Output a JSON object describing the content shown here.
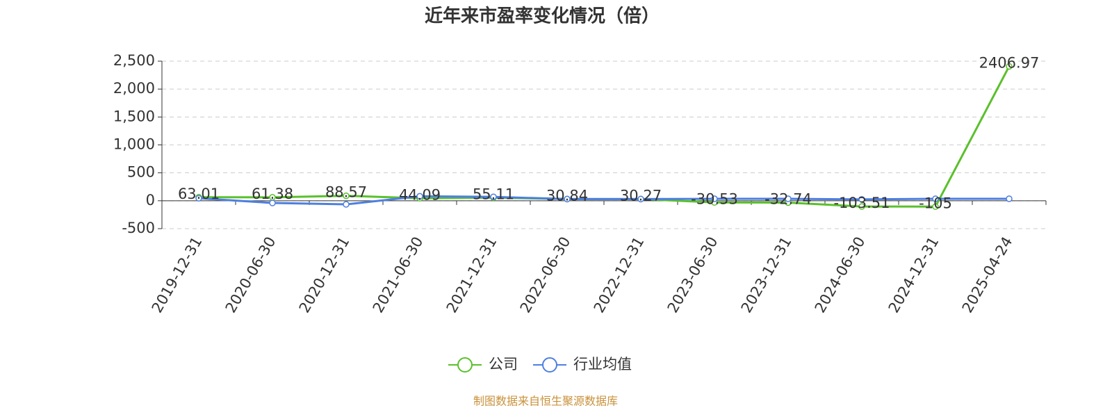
{
  "chart_data": {
    "type": "line",
    "title": "近年来市盈率变化情况（倍）",
    "categories": [
      "2019-12-31",
      "2020-06-30",
      "2020-12-31",
      "2021-06-30",
      "2021-12-31",
      "2022-06-30",
      "2022-12-31",
      "2023-06-30",
      "2023-12-31",
      "2024-06-30",
      "2024-12-31",
      "2025-04-24"
    ],
    "series": [
      {
        "name": "公司",
        "color": "#5ac02c",
        "values": [
          63.01,
          61.38,
          88.57,
          44.09,
          55.11,
          30.84,
          30.27,
          -30.53,
          -32.74,
          -103.51,
          -105,
          2406.97
        ],
        "show_labels": true
      },
      {
        "name": "行业均值",
        "color": "#4e7fe0",
        "values": [
          45,
          -40,
          -65,
          80,
          70,
          30,
          30,
          35,
          35,
          25,
          35,
          35
        ],
        "show_labels": false
      }
    ],
    "ylim": [
      -500,
      2500
    ],
    "yticks": [
      -500,
      0,
      500,
      {
        "value": 1000,
        "label": "1,000"
      },
      {
        "value": 1500,
        "label": "1,500"
      },
      {
        "value": 2000,
        "label": "2,000"
      },
      {
        "value": 2500,
        "label": "2,500"
      }
    ],
    "grid": true,
    "source": "制图数据来自恒生聚源数据库"
  }
}
